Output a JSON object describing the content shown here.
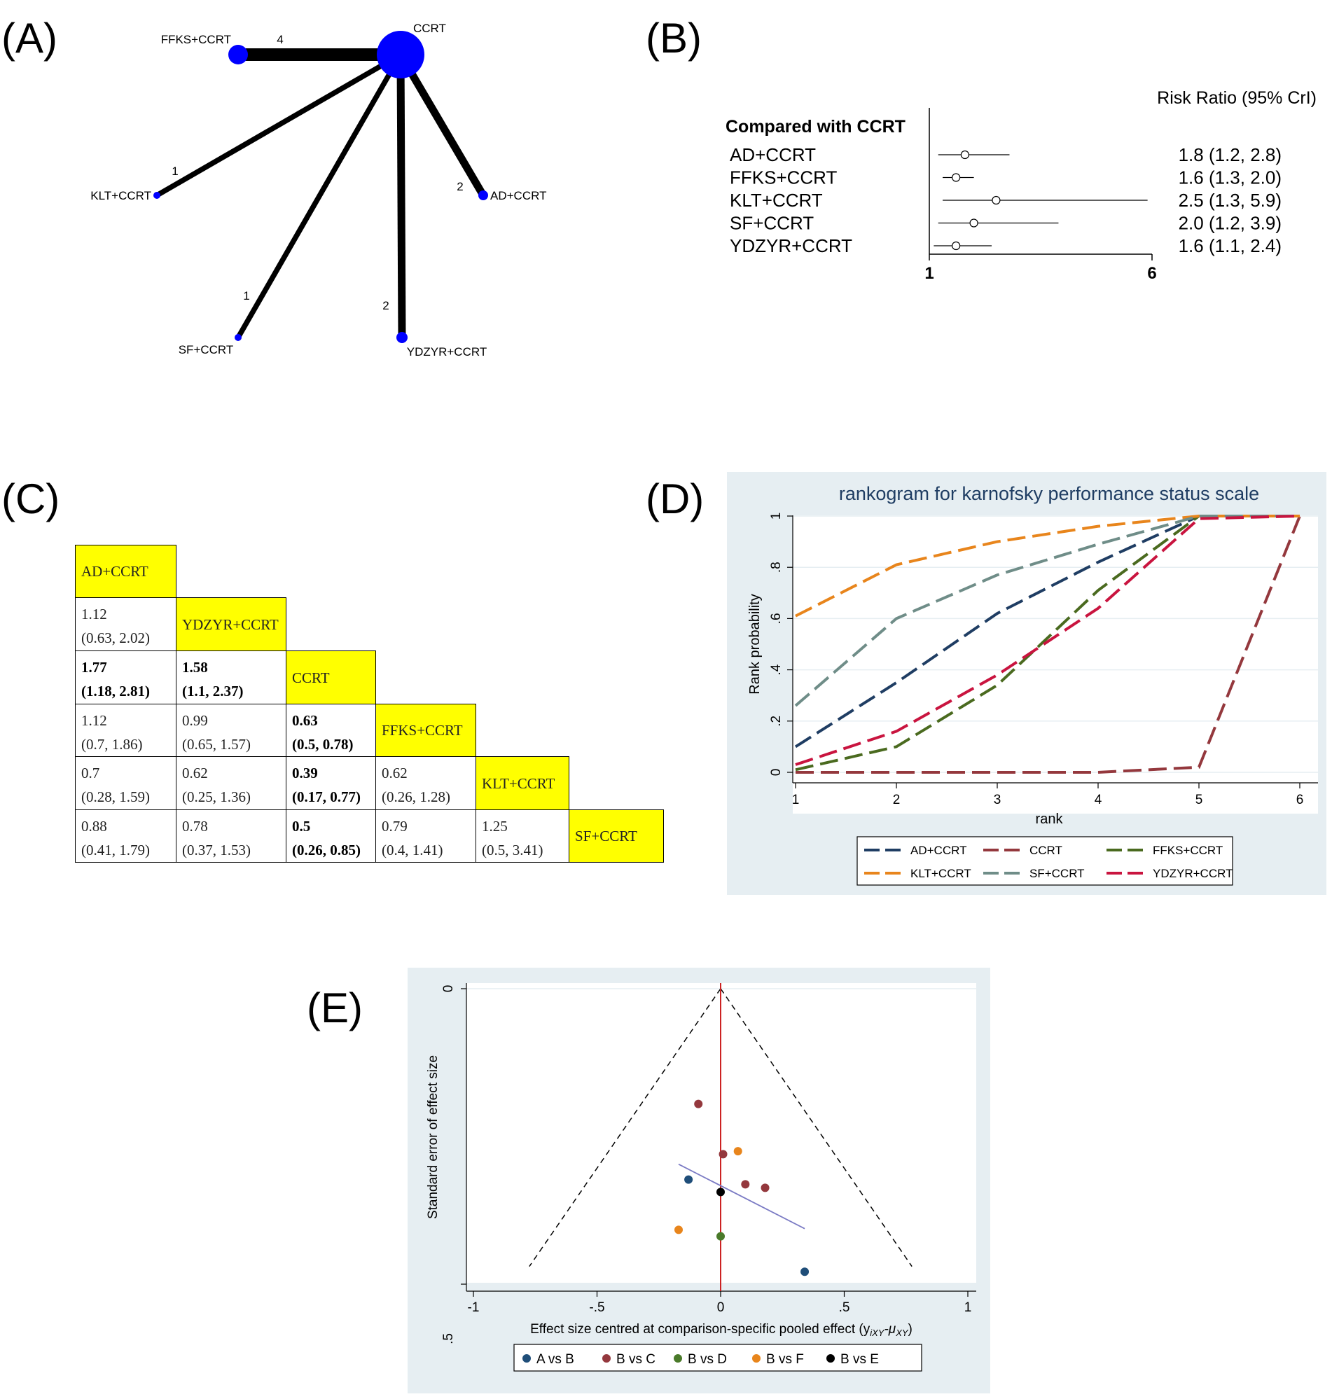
{
  "panel_labels": {
    "a": "(A)",
    "b": "(B)",
    "c": "(C)",
    "d": "(D)",
    "e": "(E)"
  },
  "chart_data": [
    {
      "type": "network",
      "panel": "A",
      "nodes": [
        {
          "name": "CCRT"
        },
        {
          "name": "FFKS+CCRT"
        },
        {
          "name": "KLT+CCRT"
        },
        {
          "name": "AD+CCRT"
        },
        {
          "name": "SF+CCRT"
        },
        {
          "name": "YDZYR+CCRT"
        }
      ],
      "edges": [
        {
          "from": "CCRT",
          "to": "FFKS+CCRT",
          "label": "4",
          "value": 4
        },
        {
          "from": "CCRT",
          "to": "KLT+CCRT",
          "label": "1",
          "value": 1
        },
        {
          "from": "CCRT",
          "to": "AD+CCRT",
          "label": "2",
          "value": 2
        },
        {
          "from": "CCRT",
          "to": "SF+CCRT",
          "label": "1",
          "value": 1
        },
        {
          "from": "CCRT",
          "to": "YDZYR+CCRT",
          "label": "2",
          "value": 2
        }
      ]
    },
    {
      "type": "forest",
      "panel": "B",
      "header": "Risk Ratio (95% CrI)",
      "group_title": "Compared with CCRT",
      "xlim": [
        1,
        6
      ],
      "x_ticks": [
        "1",
        "6"
      ],
      "rows": [
        {
          "label": "AD+CCRT",
          "est": 1.8,
          "lo": 1.2,
          "hi": 2.8,
          "text": "1.8 (1.2, 2.8)"
        },
        {
          "label": "FFKS+CCRT",
          "est": 1.6,
          "lo": 1.3,
          "hi": 2.0,
          "text": "1.6 (1.3, 2.0)"
        },
        {
          "label": "KLT+CCRT",
          "est": 2.5,
          "lo": 1.3,
          "hi": 5.9,
          "text": "2.5 (1.3, 5.9)"
        },
        {
          "label": "SF+CCRT",
          "est": 2.0,
          "lo": 1.2,
          "hi": 3.9,
          "text": "2.0 (1.2, 3.9)"
        },
        {
          "label": "YDZYR+CCRT",
          "est": 1.6,
          "lo": 1.1,
          "hi": 2.4,
          "text": "1.6 (1.1, 2.4)"
        }
      ]
    },
    {
      "type": "table",
      "panel": "C",
      "treatments": [
        "AD+CCRT",
        "YDZYR+CCRT",
        "CCRT",
        "FFKS+CCRT",
        "KLT+CCRT",
        "SF+CCRT"
      ],
      "cells": [
        {
          "row": 1,
          "col": 0,
          "value": "1.12",
          "ci": "(0.63, 2.02)",
          "bold": false
        },
        {
          "row": 2,
          "col": 0,
          "value": "1.77",
          "ci": "(1.18, 2.81)",
          "bold": true
        },
        {
          "row": 2,
          "col": 1,
          "value": "1.58",
          "ci": "(1.1, 2.37)",
          "bold": true
        },
        {
          "row": 3,
          "col": 0,
          "value": "1.12",
          "ci": "(0.7, 1.86)",
          "bold": false
        },
        {
          "row": 3,
          "col": 1,
          "value": "0.99",
          "ci": "(0.65, 1.57)",
          "bold": false
        },
        {
          "row": 3,
          "col": 2,
          "value": "0.63",
          "ci": "(0.5, 0.78)",
          "bold": true
        },
        {
          "row": 4,
          "col": 0,
          "value": "0.7",
          "ci": "(0.28, 1.59)",
          "bold": false
        },
        {
          "row": 4,
          "col": 1,
          "value": "0.62",
          "ci": "(0.25, 1.36)",
          "bold": false
        },
        {
          "row": 4,
          "col": 2,
          "value": "0.39",
          "ci": "(0.17, 0.77)",
          "bold": true
        },
        {
          "row": 4,
          "col": 3,
          "value": "0.62",
          "ci": "(0.26, 1.28)",
          "bold": false
        },
        {
          "row": 5,
          "col": 0,
          "value": "0.88",
          "ci": "(0.41, 1.79)",
          "bold": false
        },
        {
          "row": 5,
          "col": 1,
          "value": "0.78",
          "ci": "(0.37, 1.53)",
          "bold": false
        },
        {
          "row": 5,
          "col": 2,
          "value": "0.5",
          "ci": "(0.26, 0.85)",
          "bold": true
        },
        {
          "row": 5,
          "col": 3,
          "value": "0.79",
          "ci": "(0.4, 1.41)",
          "bold": false
        },
        {
          "row": 5,
          "col": 4,
          "value": "1.25",
          "ci": "(0.5, 3.41)",
          "bold": false
        }
      ],
      "diag_color": "#ffff00"
    },
    {
      "type": "line",
      "panel": "D",
      "title": "rankogram for karnofsky performance status scale",
      "xlabel": "rank",
      "ylabel": "Rank probability",
      "x": [
        1,
        2,
        3,
        4,
        5,
        6
      ],
      "xlim": [
        1,
        6
      ],
      "ylim": [
        0,
        1
      ],
      "x_ticks": [
        "1",
        "2",
        "3",
        "4",
        "5",
        "6"
      ],
      "y_ticks": [
        "0",
        ".2",
        ".4",
        ".6",
        ".8",
        "1"
      ],
      "legend_position": "bottom",
      "series": [
        {
          "name": "AD+CCRT",
          "color": "#1f3d63",
          "values": [
            0.1,
            0.35,
            0.62,
            0.82,
            1.0,
            1.0
          ]
        },
        {
          "name": "CCRT",
          "color": "#94383d",
          "values": [
            0.0,
            0.0,
            0.0,
            0.0,
            0.02,
            1.0
          ]
        },
        {
          "name": "FFKS+CCRT",
          "color": "#4a6a1f",
          "values": [
            0.01,
            0.1,
            0.34,
            0.71,
            1.0,
            1.0
          ]
        },
        {
          "name": "KLT+CCRT",
          "color": "#e8851c",
          "values": [
            0.61,
            0.81,
            0.9,
            0.96,
            1.0,
            1.0
          ]
        },
        {
          "name": "SF+CCRT",
          "color": "#6f8d88",
          "values": [
            0.26,
            0.6,
            0.77,
            0.89,
            1.0,
            1.0
          ]
        },
        {
          "name": "YDZYR+CCRT",
          "color": "#c9143f",
          "values": [
            0.03,
            0.16,
            0.38,
            0.64,
            0.99,
            1.0
          ]
        }
      ]
    },
    {
      "type": "scatter",
      "panel": "E",
      "xlabel": "Effect size centred at comparison-specific pooled effect (y",
      "xlabel_sub1": "iXY",
      "xlabel_mid": "-μ",
      "xlabel_sub2": "XY",
      "xlabel_end": ")",
      "ylabel": "Standard error of effect size",
      "xlim": [
        -1,
        1
      ],
      "ylim": [
        0,
        0.5
      ],
      "x_ticks": [
        "-1",
        "-.5",
        "0",
        ".5",
        "1"
      ],
      "y_ticks": [
        "0",
        ".5"
      ],
      "legend_position": "bottom",
      "series": [
        {
          "name": "A vs B",
          "color": "#1f4e79",
          "points": [
            [
              -0.13,
              0.323
            ],
            [
              0.34,
              0.479
            ]
          ]
        },
        {
          "name": "B vs C",
          "color": "#94383d",
          "points": [
            [
              -0.09,
              0.195
            ],
            [
              0.01,
              0.28
            ],
            [
              0.1,
              0.331
            ],
            [
              0.18,
              0.337
            ]
          ]
        },
        {
          "name": "B vs D",
          "color": "#4a7a2a",
          "points": [
            [
              0.0,
              0.419
            ]
          ]
        },
        {
          "name": "B vs F",
          "color": "#e8851c",
          "points": [
            [
              0.07,
              0.275
            ],
            [
              -0.17,
              0.408
            ]
          ]
        },
        {
          "name": "B vs E",
          "color": "#000000",
          "points": [
            [
              0.0,
              0.344
            ]
          ]
        }
      ],
      "fit_line": {
        "color": "#7b7bc4",
        "from": [
          -0.17,
          0.297
        ],
        "to": [
          0.34,
          0.406
        ]
      },
      "funnel_bottom_se": 0.47,
      "ref_line_color": "#cc2222"
    }
  ]
}
